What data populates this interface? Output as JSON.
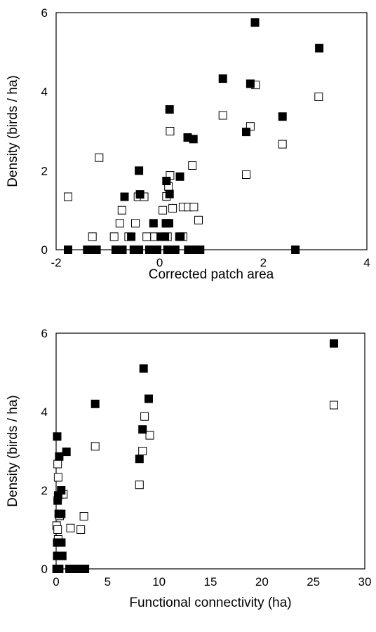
{
  "chart_data": [
    {
      "type": "scatter",
      "xlabel": "Corrected patch area",
      "ylabel": "Density (birds / ha)",
      "xlim": [
        -2,
        4
      ],
      "ylim": [
        0,
        6
      ],
      "xticks": [
        -2,
        0,
        2,
        4
      ],
      "yticks": [
        0,
        2,
        4,
        6
      ],
      "grid": false,
      "series": [
        {
          "marker": "filled-square",
          "color": "#000000",
          "x": [
            1.84,
            3.08,
            1.22,
            1.75,
            0.19,
            2.37,
            1.67,
            0.54,
            0.65,
            -0.4,
            0.39,
            -0.68,
            -0.38,
            0.13,
            0.19,
            0.13,
            -0.12,
            0.1,
            0.18,
            -0.55,
            0.02,
            0.38,
            0.4,
            -1.77,
            -1.4,
            -1.22,
            -1.28,
            -0.85,
            -0.72,
            -0.5,
            -0.4,
            -0.2,
            -0.05,
            0.15,
            0.3,
            0.55,
            0.7,
            0.78,
            2.62
          ],
          "y": [
            5.75,
            5.1,
            4.33,
            4.2,
            3.55,
            3.37,
            2.98,
            2.84,
            2.8,
            2.0,
            1.85,
            1.34,
            1.4,
            1.74,
            1.41,
            0.67,
            0.67,
            0.33,
            0.67,
            0.33,
            0.33,
            0.33,
            0.33,
            0,
            0,
            0,
            0,
            0,
            0,
            0,
            0,
            0,
            0,
            0,
            0,
            0,
            0,
            0,
            0
          ]
        },
        {
          "marker": "open-square",
          "color": "#000000",
          "x": [
            1.85,
            3.07,
            1.22,
            1.75,
            0.2,
            2.37,
            1.67,
            -1.17,
            -1.77,
            0.63,
            0.2,
            0.17,
            0.45,
            0.55,
            0.66,
            -0.42,
            0.06,
            0.25,
            0.13,
            -0.3,
            -0.73,
            0.75,
            -0.77,
            -0.47,
            -1.3,
            -0.88,
            -0.6,
            -0.25,
            0.15,
            0.45,
            -0.1,
            0.12
          ],
          "y": [
            4.17,
            3.87,
            3.4,
            3.12,
            3.0,
            2.67,
            1.9,
            2.33,
            1.34,
            2.13,
            1.88,
            1.6,
            1.08,
            1.08,
            1.08,
            1.34,
            1.0,
            1.05,
            1.35,
            1.34,
            1.0,
            0.75,
            0.67,
            0.67,
            0.33,
            0.33,
            0.33,
            0.33,
            0.33,
            0.33,
            0.33,
            0.67
          ]
        }
      ]
    },
    {
      "type": "scatter",
      "xlabel": "Functional connectivity (ha)",
      "ylabel": "Density (birds / ha)",
      "xlim": [
        0,
        30
      ],
      "ylim": [
        0,
        6
      ],
      "xticks": [
        0,
        5,
        10,
        15,
        20,
        25,
        30
      ],
      "yticks": [
        0,
        2,
        4,
        6
      ],
      "grid": false,
      "series": [
        {
          "marker": "filled-square",
          "color": "#000000",
          "x": [
            27.0,
            8.5,
            9.0,
            3.8,
            8.4,
            0.1,
            8.1,
            0.3,
            1.0,
            0.5,
            0.2,
            0.15,
            0.25,
            0.5,
            0.1,
            0.2,
            0.5,
            0.1,
            0.3,
            0.6,
            0.05,
            0.15,
            0.3,
            1.3,
            1.7,
            2.0,
            2.5,
            2.8
          ],
          "y": [
            5.74,
            5.1,
            4.33,
            4.2,
            3.55,
            3.37,
            2.8,
            2.86,
            2.98,
            2.0,
            1.87,
            1.74,
            1.4,
            1.4,
            0.67,
            0.67,
            0.67,
            0.33,
            0.33,
            0.33,
            0,
            0,
            0,
            0,
            0,
            0,
            0,
            0
          ]
        },
        {
          "marker": "open-square",
          "color": "#000000",
          "x": [
            27.0,
            8.6,
            9.1,
            3.8,
            8.4,
            8.1,
            0.15,
            0.2,
            0.7,
            1.4,
            2.7,
            2.4,
            0.05,
            0.15,
            0.35,
            0.1,
            0.2,
            0.5,
            0.3,
            0.1
          ],
          "y": [
            4.17,
            3.88,
            3.4,
            3.12,
            3.0,
            2.14,
            2.67,
            2.33,
            1.9,
            1.04,
            1.34,
            1.0,
            1.1,
            1.0,
            1.35,
            0.67,
            0.75,
            0.67,
            0.33,
            0.33
          ]
        }
      ]
    }
  ]
}
